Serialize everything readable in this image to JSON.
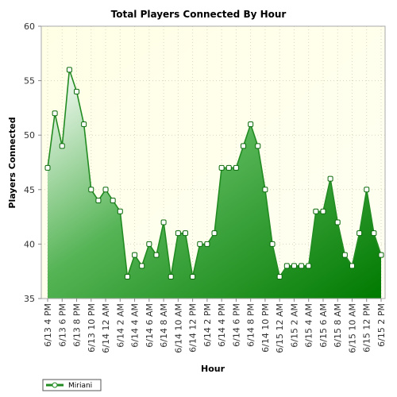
{
  "chart_data": {
    "type": "area",
    "title": "Total Players Connected By Hour",
    "xlabel": "Hour",
    "ylabel": "Players Connected",
    "ylim": [
      35,
      60
    ],
    "yticks": [
      35,
      40,
      45,
      50,
      55,
      60
    ],
    "x_tick_labels": [
      "6/13 4 PM",
      "6/13 6 PM",
      "6/13 8 PM",
      "6/13 10 PM",
      "6/14 12 AM",
      "6/14 2 AM",
      "6/14 4 AM",
      "6/14 6 AM",
      "6/14 8 AM",
      "6/14 10 AM",
      "6/14 12 PM",
      "6/14 2 PM",
      "6/14 4 PM",
      "6/14 6 PM",
      "6/14 8 PM",
      "6/14 10 PM",
      "6/15 12 AM",
      "6/15 2 AM",
      "6/15 4 AM",
      "6/15 6 AM",
      "6/15 8 AM",
      "6/15 10 AM",
      "6/15 12 PM",
      "6/15 2 PM"
    ],
    "grid": true,
    "legend_position": "bottom-left",
    "series": [
      {
        "name": "Miriani",
        "color": "#228b22",
        "values": [
          47,
          52,
          49,
          56,
          54,
          51,
          45,
          44,
          45,
          44,
          43,
          37,
          39,
          38,
          40,
          39,
          42,
          37,
          41,
          41,
          37,
          40,
          40,
          41,
          47,
          47,
          47,
          49,
          51,
          49,
          45,
          40,
          37,
          38,
          38,
          38,
          38,
          43,
          43,
          46,
          42,
          39,
          38,
          41,
          45,
          41,
          39
        ]
      }
    ]
  }
}
